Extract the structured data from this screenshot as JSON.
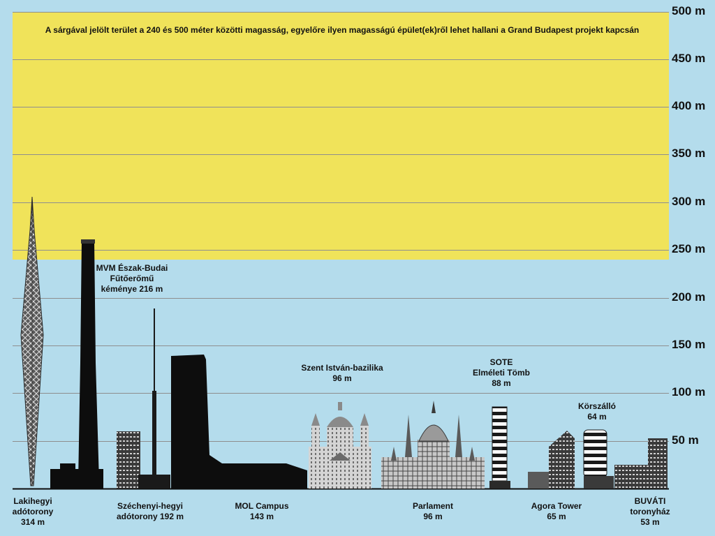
{
  "colors": {
    "sky": "#b4dcec",
    "zone": "#f0e35a",
    "ink": "#0d0d0d",
    "grid": "#8e8e8e"
  },
  "scale": {
    "unit": "m",
    "max": 500,
    "ticks": [
      "500 m",
      "450 m",
      "400 m",
      "350 m",
      "300 m",
      "250 m",
      "200 m",
      "150 m",
      "100 m",
      "50 m"
    ]
  },
  "zone_note": "A sárgával jelölt terület a 240 és 500 méter közötti magasság, egyelőre ilyen magasságú épület(ek)ről lehet hallani a Grand Budapest projekt kapcsán",
  "buildings": [
    {
      "name": "Lakihegyi adótorony",
      "height_m": 314,
      "lines": [
        "Lakihegyi",
        "adótorony",
        "314 m"
      ]
    },
    {
      "name": "MVM Észak-Budai Fűtőerőmű kéménye",
      "height_m": 216,
      "lines": [
        "MVM Észak-Budai",
        "Fűtőerőmű",
        "kéménye 216 m"
      ]
    },
    {
      "name": "Széchenyi-hegyi adótorony",
      "height_m": 192,
      "lines": [
        "Széchenyi-hegyi",
        "adótorony 192 m"
      ]
    },
    {
      "name": "MOL Campus",
      "height_m": 143,
      "lines": [
        "MOL Campus",
        "143 m"
      ]
    },
    {
      "name": "Szent István-bazilika",
      "height_m": 96,
      "lines": [
        "Szent István-bazilika",
        "96 m"
      ]
    },
    {
      "name": "Parlament",
      "height_m": 96,
      "lines": [
        "Parlament",
        "96 m"
      ]
    },
    {
      "name": "SOTE Elméleti Tömb",
      "height_m": 88,
      "lines": [
        "SOTE",
        "Elméleti Tömb",
        "88 m"
      ]
    },
    {
      "name": "Körszálló",
      "height_m": 64,
      "lines": [
        "Körszálló",
        "64 m"
      ]
    },
    {
      "name": "Agora Tower",
      "height_m": 65,
      "lines": [
        "Agora Tower",
        "65 m"
      ]
    },
    {
      "name": "BUVÁTI toronyház",
      "height_m": 53,
      "lines": [
        "BUVÁTI",
        "toronyház",
        "53 m"
      ]
    }
  ]
}
